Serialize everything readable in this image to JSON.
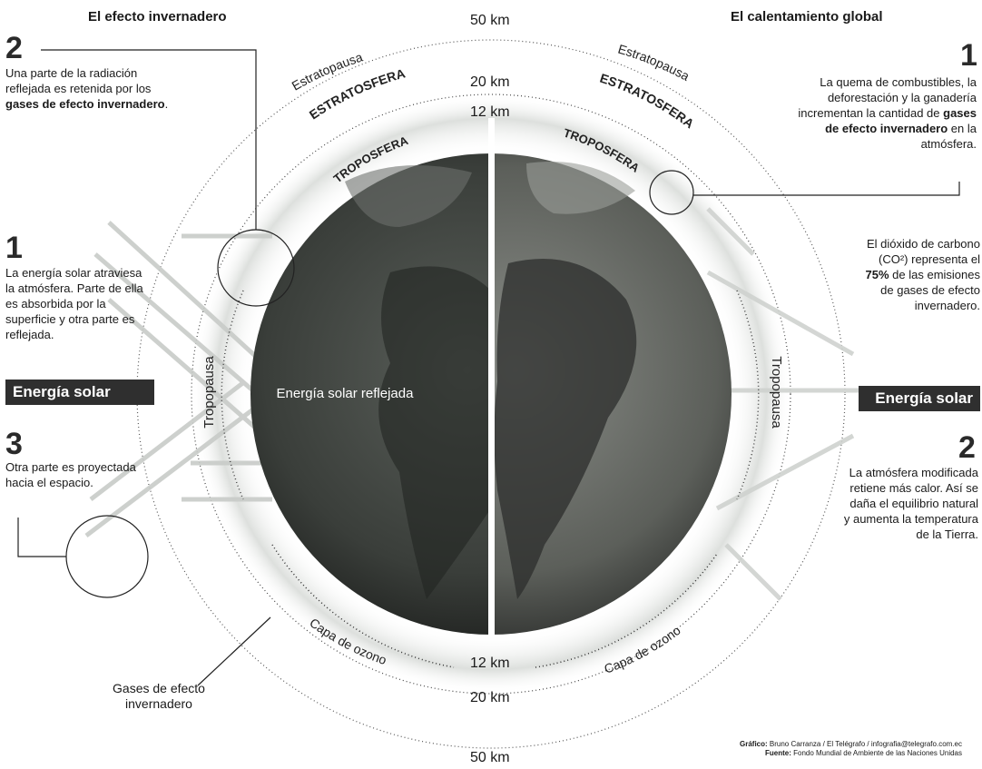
{
  "left": {
    "title": "El efecto invernadero",
    "step2": {
      "num": "2",
      "text_a": "Una parte de la radiación reflejada es retenida por los ",
      "text_b": "gases de efecto invernadero",
      "text_c": "."
    },
    "step1": {
      "num": "1",
      "text": "La energía solar atraviesa la atmósfera. Parte de ella es absorbida por la superficie y otra parte es reflejada."
    },
    "badge": "Energía solar",
    "step3": {
      "num": "3",
      "text": "Otra parte es proyectada hacia el espacio."
    },
    "gases_label": "Gases de efecto invernadero"
  },
  "right": {
    "title": "El calentamiento global",
    "step1": {
      "num": "1",
      "text_a": "La quema de combustibles, la deforestación y la ganadería incrementan la cantidad de ",
      "text_b": "gases de efecto invernadero",
      "text_c": " en la atmósfera."
    },
    "co2": {
      "text_a": "El dióxido de carbono (CO²) representa el ",
      "pct": "75%",
      "text_b": " de las emisiones de gases de efecto invernadero."
    },
    "badge": "Energía solar",
    "step2": {
      "num": "2",
      "text": "La atmósfera modificada retiene más calor. Así se daña el equilibrio natural y aumenta la temperatura de la Tierra."
    }
  },
  "center": {
    "km50_top": "50 km",
    "km20_top": "20 km",
    "km12_top": "12 km",
    "km12_bottom": "12 km",
    "km20_bottom": "20 km",
    "km50_bottom": "50 km",
    "estratopausa": "Estratopausa",
    "estratosfera": "ESTRATOSFERA",
    "troposfera": "TROPOSFERA",
    "tropopausa": "Tropopausa",
    "capa_ozono": "Capa de ozono",
    "reflejada": "Energía solar reflejada"
  },
  "credits": {
    "grafico_label": "Gráfico:",
    "grafico": "Bruno Carranza / El Telégrafo / infografia@telegrafo.com.ec",
    "fuente_label": "Fuente:",
    "fuente": "Fondo Mundial de Ambiente de las Naciones Unidas"
  }
}
